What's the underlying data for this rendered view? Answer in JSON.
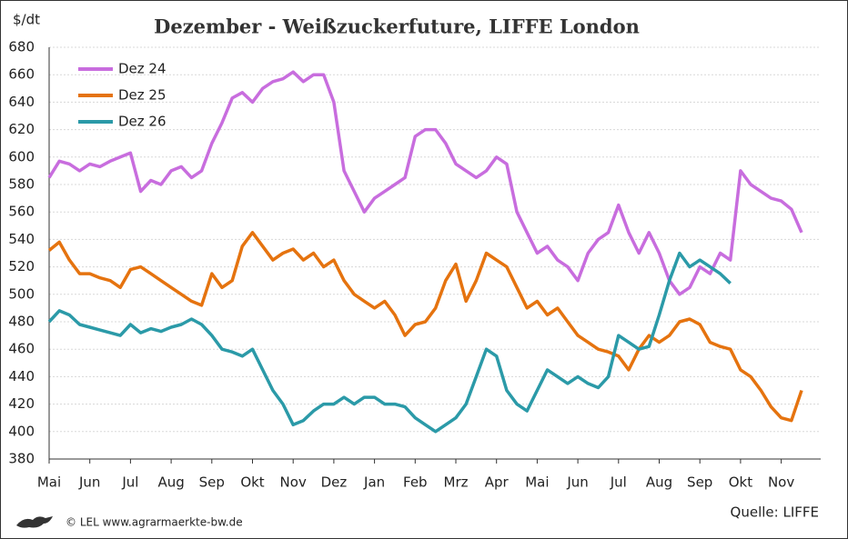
{
  "chart_data": {
    "type": "line",
    "title": "Dezember - Weißzuckerfuture, LIFFE London",
    "y_label": "$/dt",
    "categories": [
      "Mai",
      null,
      null,
      null,
      "Jun",
      null,
      null,
      null,
      "Jul",
      null,
      null,
      null,
      "Aug",
      null,
      null,
      null,
      "Sep",
      null,
      null,
      null,
      "Okt",
      null,
      null,
      null,
      "Nov",
      null,
      null,
      null,
      "Dez",
      null,
      null,
      null,
      "Jan",
      null,
      null,
      null,
      "Feb",
      null,
      null,
      null,
      "Mrz",
      null,
      null,
      null,
      "Apr",
      null,
      null,
      null,
      "Mai",
      null,
      null,
      null,
      "Jun",
      null,
      null,
      null,
      "Jul",
      null,
      null,
      null,
      "Aug",
      null,
      null,
      null,
      "Sep",
      null,
      null,
      null,
      "Okt",
      null,
      null,
      null,
      "Nov",
      null,
      null,
      null
    ],
    "series": [
      {
        "name": "Dez 24",
        "color": "#c86dde",
        "values": [
          585,
          597,
          595,
          590,
          595,
          593,
          597,
          600,
          603,
          575,
          583,
          580,
          590,
          593,
          585,
          590,
          610,
          625,
          643,
          647,
          640,
          650,
          655,
          657,
          662,
          655,
          660,
          660,
          640,
          590,
          575,
          560,
          570,
          575,
          580,
          585,
          615,
          620,
          620,
          610,
          595,
          590,
          585,
          590,
          600,
          595,
          560,
          545,
          530,
          535,
          525,
          520,
          510,
          530,
          540,
          545,
          565,
          545,
          530,
          545,
          530,
          510,
          500,
          505,
          520,
          515,
          530,
          525,
          590,
          580,
          575,
          570,
          568,
          562,
          545,
          null
        ]
      },
      {
        "name": "Dez 25",
        "color": "#e5730f",
        "values": [
          532,
          538,
          525,
          515,
          515,
          512,
          510,
          505,
          518,
          520,
          515,
          510,
          505,
          500,
          495,
          492,
          515,
          505,
          510,
          535,
          545,
          535,
          525,
          530,
          533,
          525,
          530,
          520,
          525,
          510,
          500,
          495,
          490,
          495,
          485,
          470,
          478,
          480,
          490,
          510,
          522,
          495,
          510,
          530,
          525,
          520,
          505,
          490,
          495,
          485,
          490,
          480,
          470,
          465,
          460,
          458,
          455,
          445,
          460,
          470,
          465,
          470,
          480,
          482,
          478,
          465,
          462,
          460,
          445,
          440,
          430,
          418,
          410,
          408,
          430,
          null
        ]
      },
      {
        "name": "Dez 26",
        "color": "#2b9aa8",
        "values": [
          480,
          488,
          485,
          478,
          476,
          474,
          472,
          470,
          478,
          472,
          475,
          473,
          476,
          478,
          482,
          478,
          470,
          460,
          458,
          455,
          460,
          445,
          430,
          420,
          405,
          408,
          415,
          420,
          420,
          425,
          420,
          425,
          425,
          420,
          420,
          418,
          410,
          405,
          400,
          405,
          410,
          420,
          440,
          460,
          455,
          430,
          420,
          415,
          430,
          445,
          440,
          435,
          440,
          435,
          432,
          440,
          470,
          465,
          460,
          462,
          485,
          510,
          530,
          520,
          525,
          520,
          515,
          508,
          null,
          null,
          null,
          null,
          null,
          null,
          null,
          null
        ]
      }
    ],
    "ylim": [
      380,
      680
    ],
    "yticks": [
      380,
      400,
      420,
      440,
      460,
      480,
      500,
      520,
      540,
      560,
      580,
      600,
      620,
      640,
      660,
      680
    ],
    "grid": true,
    "legend": "top-left",
    "source": "Quelle:  LIFFE",
    "credit": "© LEL www.agrarmaerkte-bw.de"
  }
}
